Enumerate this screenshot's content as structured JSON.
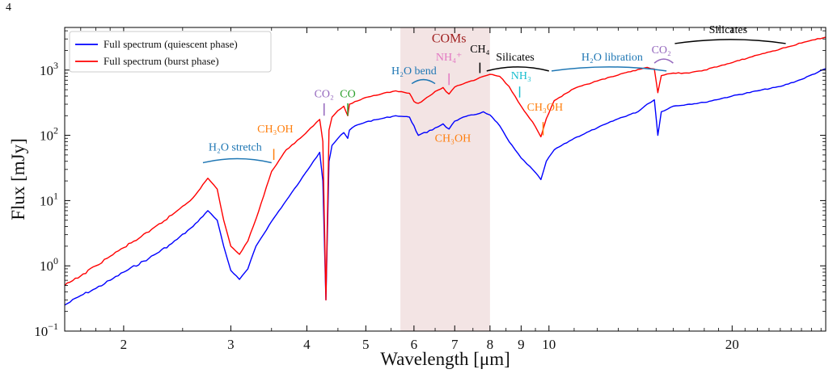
{
  "figure_number": "4",
  "chart_data": {
    "type": "line",
    "xscale": "log",
    "yscale": "log",
    "xlim": [
      1.6,
      28.5
    ],
    "ylim": [
      0.1,
      4500
    ],
    "xlabel": "Wavelength [μm]",
    "ylabel": "Flux [mJy]",
    "x_ticks": [
      2,
      3,
      4,
      5,
      6,
      7,
      8,
      9,
      10,
      20
    ],
    "x_tick_labels": [
      "2",
      "3",
      "4",
      "5",
      "6",
      "7",
      "8",
      "9",
      "10",
      "20"
    ],
    "y_ticks": [
      0.1,
      1,
      10,
      100,
      1000
    ],
    "y_tick_labels": [
      {
        "base": "10",
        "exp": "−1"
      },
      {
        "base": "10",
        "exp": "0"
      },
      {
        "base": "10",
        "exp": "1"
      },
      {
        "base": "10",
        "exp": "2"
      },
      {
        "base": "10",
        "exp": "3"
      }
    ],
    "legend_position": "top-left",
    "shaded_region": {
      "x": [
        5.7,
        8.0
      ],
      "label": "COMs",
      "color": "#f3e4e4"
    },
    "series": [
      {
        "name": "Full spectrum (quiescent phase)",
        "color": "#0000ff",
        "x": [
          1.6,
          1.7,
          1.8,
          1.9,
          2.0,
          2.2,
          2.4,
          2.6,
          2.75,
          2.85,
          2.92,
          3.0,
          3.1,
          3.2,
          3.3,
          3.5,
          3.7,
          3.9,
          4.1,
          4.2,
          4.25,
          4.3,
          4.35,
          4.4,
          4.5,
          4.6,
          4.67,
          4.7,
          4.8,
          5.0,
          5.3,
          5.6,
          5.9,
          6.0,
          6.1,
          6.3,
          6.5,
          6.7,
          6.85,
          7.0,
          7.3,
          7.6,
          7.8,
          8.0,
          8.3,
          8.6,
          9.0,
          9.4,
          9.7,
          9.9,
          10.2,
          11,
          12,
          13,
          14,
          14.5,
          14.9,
          15.1,
          15.3,
          16,
          17,
          18,
          20,
          22,
          24,
          26,
          28.5
        ],
        "y": [
          0.25,
          0.35,
          0.45,
          0.6,
          0.8,
          1.3,
          2.2,
          4.0,
          7.0,
          5.0,
          2.0,
          0.85,
          0.62,
          0.9,
          2.0,
          4.8,
          10,
          20,
          40,
          55,
          20,
          0.3,
          40,
          70,
          90,
          110,
          90,
          120,
          140,
          160,
          180,
          200,
          190,
          140,
          100,
          110,
          130,
          150,
          125,
          165,
          195,
          210,
          230,
          205,
          140,
          80,
          45,
          30,
          21,
          40,
          60,
          90,
          130,
          180,
          230,
          300,
          350,
          100,
          230,
          280,
          300,
          320,
          400,
          480,
          560,
          720,
          1050
        ]
      },
      {
        "name": "Full spectrum (burst phase)",
        "color": "#ff0000",
        "x": [
          1.6,
          1.7,
          1.8,
          1.9,
          2.0,
          2.2,
          2.4,
          2.6,
          2.75,
          2.85,
          2.92,
          3.0,
          3.1,
          3.2,
          3.3,
          3.5,
          3.7,
          3.9,
          4.1,
          4.2,
          4.25,
          4.3,
          4.35,
          4.4,
          4.5,
          4.6,
          4.67,
          4.7,
          4.8,
          5.0,
          5.3,
          5.6,
          5.9,
          6.0,
          6.1,
          6.3,
          6.5,
          6.7,
          6.85,
          7.0,
          7.3,
          7.6,
          7.8,
          8.0,
          8.3,
          8.6,
          9.0,
          9.4,
          9.7,
          9.9,
          10.2,
          11,
          12,
          13,
          14,
          14.5,
          14.9,
          15.1,
          15.3,
          16,
          17,
          18,
          20,
          22,
          24,
          26,
          28.5
        ],
        "y": [
          0.5,
          0.7,
          1.0,
          1.4,
          1.9,
          3.3,
          6.0,
          11,
          22,
          15,
          5.0,
          2.0,
          1.5,
          2.4,
          5.2,
          28,
          60,
          90,
          140,
          175,
          80,
          0.3,
          120,
          190,
          240,
          280,
          200,
          300,
          330,
          380,
          430,
          480,
          440,
          330,
          310,
          380,
          470,
          540,
          430,
          550,
          640,
          720,
          800,
          860,
          800,
          560,
          280,
          160,
          95,
          180,
          340,
          520,
          680,
          840,
          1020,
          1100,
          1040,
          450,
          820,
          900,
          900,
          1000,
          1300,
          1700,
          2100,
          2600,
          3200
        ]
      }
    ],
    "annotations": [
      {
        "text": "H₂O stretch",
        "color": "#1f77b4",
        "x": 3.05,
        "y": 58,
        "arc": [
          2.7,
          3.5,
          38
        ]
      },
      {
        "text": "CH₃OH",
        "color": "#ff7f0e",
        "x": 3.55,
        "y": 110,
        "tick": [
          3.53,
          42,
          62
        ]
      },
      {
        "text": "CO₂",
        "color": "#9467bd",
        "x": 4.27,
        "y": 380,
        "tick": [
          4.27,
          200,
          310
        ]
      },
      {
        "text": "CO",
        "color": "#2ca02c",
        "x": 4.67,
        "y": 380,
        "tick": [
          4.67,
          200,
          310
        ]
      },
      {
        "text": "H₂O bend",
        "color": "#1f77b4",
        "x": 6.0,
        "y": 860,
        "arc": [
          5.95,
          6.5,
          620
        ]
      },
      {
        "text": "COMs",
        "color": "#a02020",
        "x": 6.85,
        "y": 2650
      },
      {
        "text": "NH₄⁺",
        "color": "#e377c2",
        "x": 6.85,
        "y": 1400,
        "tick": [
          6.85,
          590,
          890
        ]
      },
      {
        "text": "CH₄",
        "color": "#000000",
        "x": 7.7,
        "y": 1850,
        "tick": [
          7.7,
          900,
          1300
        ]
      },
      {
        "text": "Silicates",
        "color": "#000000",
        "x": 8.8,
        "y": 1400,
        "arc": [
          7.9,
          10.0,
          970
        ]
      },
      {
        "text": "NH₃",
        "color": "#17becf",
        "x": 9.0,
        "y": 730,
        "tick": [
          8.95,
          380,
          560
        ]
      },
      {
        "text": "CH₃OH",
        "color": "#ff7f0e",
        "x": 9.85,
        "y": 240,
        "tick": [
          9.78,
          100,
          160
        ]
      },
      {
        "text": "H₂O libration",
        "color": "#1f77b4",
        "x": 12.7,
        "y": 1400,
        "arc": [
          10.1,
          15.6,
          970
        ]
      },
      {
        "text": "CO₂",
        "color": "#9467bd",
        "x": 15.3,
        "y": 1800,
        "arc": [
          14.9,
          16.0,
          1280
        ]
      },
      {
        "text": "CH₃OH",
        "color": "#ff7f0e",
        "x": 6.95,
        "y": 80
      },
      {
        "text": "Silicates",
        "color": "#000000",
        "x": 19.7,
        "y": 3700,
        "arc": [
          16.1,
          24.5,
          2550
        ]
      }
    ]
  }
}
